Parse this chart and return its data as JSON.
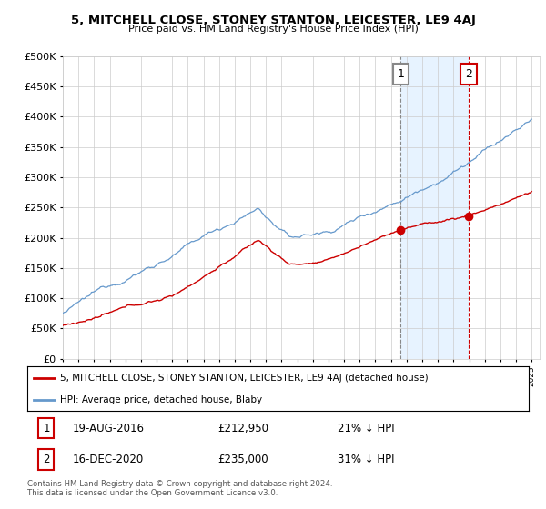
{
  "title": "5, MITCHELL CLOSE, STONEY STANTON, LEICESTER, LE9 4AJ",
  "subtitle": "Price paid vs. HM Land Registry's House Price Index (HPI)",
  "ylim": [
    0,
    500000
  ],
  "yticks": [
    0,
    50000,
    100000,
    150000,
    200000,
    250000,
    300000,
    350000,
    400000,
    450000,
    500000
  ],
  "x_start_year": 1995,
  "x_end_year": 2025,
  "legend_label_red": "5, MITCHELL CLOSE, STONEY STANTON, LEICESTER, LE9 4AJ (detached house)",
  "legend_label_blue": "HPI: Average price, detached house, Blaby",
  "transaction1_date": "19-AUG-2016",
  "transaction1_price": 212950,
  "transaction1_label": "1",
  "transaction1_x": 2016.63,
  "transaction1_pct": "21% ↓ HPI",
  "transaction2_date": "16-DEC-2020",
  "transaction2_price": 235000,
  "transaction2_label": "2",
  "transaction2_x": 2020.96,
  "transaction2_pct": "31% ↓ HPI",
  "footer": "Contains HM Land Registry data © Crown copyright and database right 2024.\nThis data is licensed under the Open Government Licence v3.0.",
  "red_color": "#cc0000",
  "blue_color": "#6699cc",
  "blue_shade_color": "#ddeeff",
  "vline1_color": "#aaaaaa",
  "vline2_color": "#cc0000",
  "background_color": "#ffffff",
  "grid_color": "#cccccc"
}
